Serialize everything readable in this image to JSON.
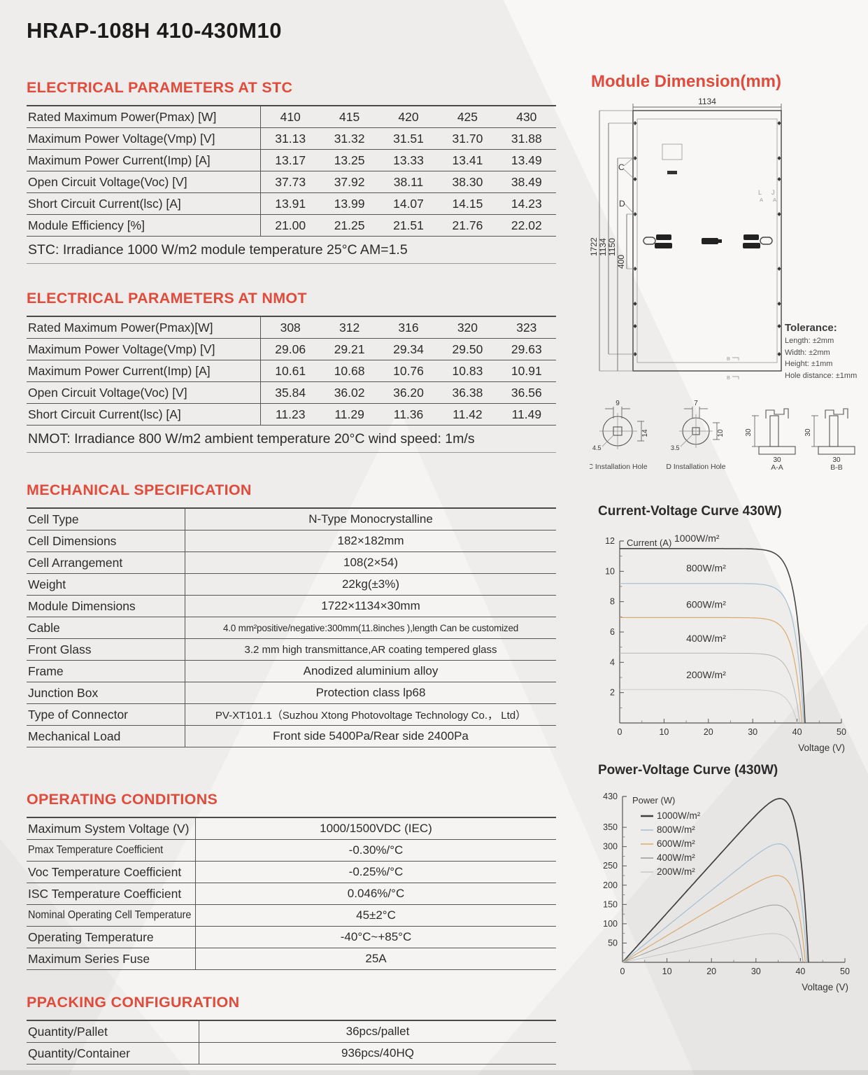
{
  "page": {
    "title": "HRAP-108H 410-430M10"
  },
  "tables": [
    {
      "id": "stc",
      "heading": "ELECTRICAL PARAMETERS AT STC",
      "type": "grid",
      "rows": [
        {
          "label": "Rated Maximum Power(Pmax) [W]",
          "values": [
            "410",
            "415",
            "420",
            "425",
            "430"
          ]
        },
        {
          "label": "Maximum Power Voltage(Vmp) [V]",
          "values": [
            "31.13",
            "31.32",
            "31.51",
            "31.70",
            "31.88"
          ]
        },
        {
          "label": "Maximum Power Current(Imp) [A]",
          "values": [
            "13.17",
            "13.25",
            "13.33",
            "13.41",
            "13.49"
          ]
        },
        {
          "label": "Open Circuit Voltage(Voc) [V]",
          "values": [
            "37.73",
            "37.92",
            "38.11",
            "38.30",
            "38.49"
          ]
        },
        {
          "label": "Short Circuit Current(lsc) [A]",
          "values": [
            "13.91",
            "13.99",
            "14.07",
            "14.15",
            "14.23"
          ]
        },
        {
          "label": "Module Efficiency [%]",
          "values": [
            "21.00",
            "21.25",
            "21.51",
            "21.76",
            "22.02"
          ]
        }
      ],
      "note": "STC: Irradiance 1000 W/m2 module temperature 25°C AM=1.5"
    },
    {
      "id": "nmot",
      "heading": "ELECTRICAL PARAMETERS AT NMOT",
      "type": "grid",
      "rows": [
        {
          "label": "Rated Maximum Power(Pmax)[W]",
          "values": [
            "308",
            "312",
            "316",
            "320",
            "323"
          ]
        },
        {
          "label": "Maximum Power Voltage(Vmp) [V]",
          "values": [
            "29.06",
            "29.21",
            "29.34",
            "29.50",
            "29.63"
          ]
        },
        {
          "label": "Maximum Power Current(Imp) [A]",
          "values": [
            "10.61",
            "10.68",
            "10.76",
            "10.83",
            "10.91"
          ]
        },
        {
          "label": "Open Circuit Voltage(Voc) [V]",
          "values": [
            "35.84",
            "36.02",
            "36.20",
            "36.38",
            "36.56"
          ]
        },
        {
          "label": "Short Circuit Current(lsc) [A]",
          "values": [
            "11.23",
            "11.29",
            "11.36",
            "11.42",
            "11.49"
          ]
        }
      ],
      "note": "NMOT: Irradiance 800 W/m2 ambient temperature 20°C wind speed: 1m/s"
    },
    {
      "id": "mech",
      "heading": "MECHANICAL SPECIFICATION",
      "type": "kv",
      "rows": [
        {
          "label": "Cell Type",
          "value": "N-Type Monocrystalline"
        },
        {
          "label": "Cell Dimensions",
          "value": "182×182mm"
        },
        {
          "label": "Cell Arrangement",
          "value": "108(2×54)"
        },
        {
          "label": "Weight",
          "value": "22kg(±3%)"
        },
        {
          "label": "Module Dimensions",
          "value": "1722×1134×30mm"
        },
        {
          "label": "Cable",
          "value": "4.0 mm²positive/negative:300mm(11.8inches ),length Can be customized"
        },
        {
          "label": "Front Glass",
          "value": "3.2 mm high transmittance,AR coating tempered glass"
        },
        {
          "label": "Frame",
          "value": "Anodized aluminium alloy"
        },
        {
          "label": "Junction Box",
          "value": "Protection class lp68"
        },
        {
          "label": "Type of Connector",
          "value": "PV-XT101.1（Suzhou Xtong Photovoltage Technology Co.， Ltd）"
        },
        {
          "label": "Mechanical Load",
          "value": "Front side 5400Pa/Rear side 2400Pa"
        }
      ],
      "note": ""
    },
    {
      "id": "oper",
      "heading": "OPERATING CONDITIONS",
      "type": "kv",
      "rows": [
        {
          "label": "Maximum System Voltage (V)",
          "value": "1000/1500VDC (IEC)"
        },
        {
          "label": "Pmax Temperature Coefficient",
          "value": "-0.30%/°C"
        },
        {
          "label": "Voc Temperature Coefficient",
          "value": "-0.25%/°C"
        },
        {
          "label": "ISC Temperature Coefficient",
          "value": "0.046%/°C"
        },
        {
          "label": "Nominal Operating Cell Temperature",
          "value": "45±2°C"
        },
        {
          "label": "Operating Temperature",
          "value": "-40°C~+85°C"
        },
        {
          "label": "Maximum Series Fuse",
          "value": "25A"
        }
      ],
      "note": ""
    },
    {
      "id": "pack",
      "heading": "PPACKING CONFIGURATION",
      "type": "kv",
      "rows": [
        {
          "label": "Quantity/Pallet",
          "value": "36pcs/pallet"
        },
        {
          "label": "Quantity/Container",
          "value": "936pcs/40HQ"
        }
      ],
      "note": ""
    }
  ],
  "module_dim": {
    "heading": "Module Dimension(mm)",
    "top_dim": "1134",
    "left_dims": [
      "1722",
      "1134",
      "1150",
      "400"
    ],
    "label_c": "C",
    "label_d": "D",
    "marks": {
      "left": "L",
      "right": "J",
      "sub": "A",
      "bottom": "B"
    }
  },
  "tolerance": {
    "title": "Tolerance:",
    "lines": [
      "Length: ±2mm",
      "Width: ±2mm",
      "Height: ±1mm",
      "Hole distance: ±1mm"
    ]
  },
  "holes": {
    "c": {
      "caption": "C Installation Hole",
      "d_top": "9",
      "d_right": "14",
      "d_left": "4.5"
    },
    "d": {
      "caption": "D Installation Hole",
      "d_top": "7",
      "d_right": "10",
      "d_left": "3.5"
    },
    "aa": {
      "caption": "A-A",
      "d_side": "30",
      "d_bottom": "30"
    },
    "bb": {
      "caption": "B-B",
      "d_side": "30",
      "d_bottom": "30"
    }
  },
  "chart_data": [
    {
      "type": "line",
      "title": "Current-Voltage Curve 430W)",
      "xlabel": "Voltage  (V)",
      "ylabel": "Current (A)",
      "xlim": [
        0,
        50
      ],
      "ylim": [
        0,
        12
      ],
      "x_ticks": [
        0,
        10,
        20,
        30,
        40,
        50
      ],
      "x_minor": [
        5,
        15,
        25,
        35,
        45
      ],
      "y_ticks": [
        2,
        4,
        6,
        8,
        10,
        12
      ],
      "y_minor": [
        1,
        3,
        5,
        7,
        9,
        11
      ],
      "grid": false,
      "series": [
        {
          "label": "1000W/m²",
          "isc": 11.5,
          "voc": 41.8,
          "color": "#474747",
          "w": 1.6
        },
        {
          "label": "800W/m²",
          "isc": 9.2,
          "voc": 41.5,
          "color": "#a3bed1",
          "w": 1.2
        },
        {
          "label": "600W/m²",
          "isc": 6.95,
          "voc": 41.1,
          "color": "#d9ab6d",
          "w": 1.2
        },
        {
          "label": "400W/m²",
          "isc": 4.6,
          "voc": 40.6,
          "color": "#b5b5b5",
          "w": 1.0
        },
        {
          "label": "200W/m²",
          "isc": 2.2,
          "voc": 40.0,
          "color": "#c9c9c9",
          "w": 1.0
        }
      ],
      "annotations": [
        {
          "text": "1000W/m²",
          "v": 12.3,
          "a": 11.95
        },
        {
          "text": "800W/m²",
          "v": 15,
          "a": 10.0
        },
        {
          "text": "600W/m²",
          "v": 15,
          "a": 7.6
        },
        {
          "text": "400W/m²",
          "v": 15,
          "a": 5.35
        },
        {
          "text": "200W/m²",
          "v": 15,
          "a": 2.95
        }
      ]
    },
    {
      "type": "line",
      "title": "Power-Voltage Curve (430W)",
      "xlabel": "Voltage  (V)",
      "ylabel": "Power (W)",
      "xlim": [
        0,
        50
      ],
      "ylim": [
        0,
        430
      ],
      "x_ticks": [
        0,
        10,
        20,
        30,
        40,
        50
      ],
      "x_minor": [
        5,
        15,
        25,
        35,
        45
      ],
      "y_ticks": [
        50,
        100,
        150,
        200,
        250,
        300,
        350
      ],
      "y_top_tick": 430,
      "grid": false,
      "legend_position": "upper-left",
      "series": [
        {
          "label": "1000W/m²",
          "pmax": 420,
          "vmp": 34.0,
          "voc": 41.8,
          "color": "#3f3f3f",
          "w": 1.7
        },
        {
          "label": "800W/m²",
          "pmax": 305,
          "vmp": 34.0,
          "voc": 41.5,
          "color": "#a3bed1",
          "w": 1.2
        },
        {
          "label": "600W/m²",
          "pmax": 225,
          "vmp": 34.5,
          "voc": 41.1,
          "color": "#d9ab6d",
          "w": 1.2
        },
        {
          "label": "400W/m²",
          "pmax": 148,
          "vmp": 35.0,
          "voc": 40.6,
          "color": "#9a9a9a",
          "w": 1.0
        },
        {
          "label": "200W/m²",
          "pmax": 72,
          "vmp": 35.5,
          "voc": 40.0,
          "color": "#c6c6c6",
          "w": 1.0
        }
      ]
    }
  ]
}
